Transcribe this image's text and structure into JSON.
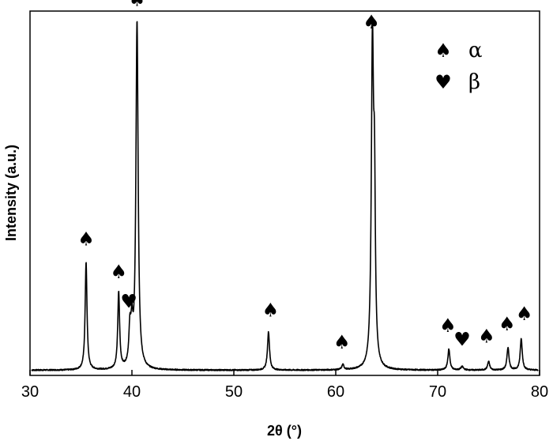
{
  "chart_data": {
    "type": "line",
    "title": "",
    "xlabel": "2θ (°)",
    "ylabel": "Intensity (a.u.)",
    "xlim": [
      30,
      80
    ],
    "ylim": [
      0,
      105
    ],
    "xticks": [
      30,
      40,
      50,
      60,
      70,
      80
    ],
    "y_tick_labels": false,
    "grid": false,
    "baseline": 1.5,
    "series": [
      {
        "line_color": "#000000",
        "peaks": [
          {
            "x": 35.5,
            "y": 31,
            "w": 0.11
          },
          {
            "x": 38.7,
            "y": 22,
            "w": 0.11
          },
          {
            "x": 39.8,
            "y": 10,
            "w": 0.12
          },
          {
            "x": 40.0,
            "y": 10,
            "w": 0.12
          },
          {
            "x": 40.5,
            "y": 100,
            "w": 0.13
          },
          {
            "x": 53.4,
            "y": 11,
            "w": 0.12
          },
          {
            "x": 60.7,
            "y": 1.5,
            "w": 0.12
          },
          {
            "x": 63.6,
            "y": 92,
            "w": 0.13
          },
          {
            "x": 63.8,
            "y": 44,
            "w": 0.1
          },
          {
            "x": 71.1,
            "y": 6,
            "w": 0.12
          },
          {
            "x": 72.4,
            "y": 1,
            "w": 0.15
          },
          {
            "x": 75.0,
            "y": 2.5,
            "w": 0.12
          },
          {
            "x": 76.9,
            "y": 6.5,
            "w": 0.12
          },
          {
            "x": 78.2,
            "y": 9,
            "w": 0.12
          }
        ]
      }
    ],
    "phase_markers": [
      {
        "x": 35.5,
        "y": 37.5,
        "symbol": "♠"
      },
      {
        "x": 38.7,
        "y": 28,
        "symbol": "♠"
      },
      {
        "x": 39.7,
        "y": 19.5,
        "symbol": "♥"
      },
      {
        "x": 40.5,
        "y": 106.5,
        "symbol": "♠"
      },
      {
        "x": 53.6,
        "y": 17,
        "symbol": "♠"
      },
      {
        "x": 60.6,
        "y": 7.8,
        "symbol": "♠"
      },
      {
        "x": 63.5,
        "y": 100,
        "symbol": "♠"
      },
      {
        "x": 71.0,
        "y": 12.5,
        "symbol": "♠"
      },
      {
        "x": 72.4,
        "y": 8.5,
        "symbol": "♥"
      },
      {
        "x": 74.8,
        "y": 9.5,
        "symbol": "♠"
      },
      {
        "x": 76.8,
        "y": 13,
        "symbol": "♠"
      },
      {
        "x": 78.5,
        "y": 16,
        "symbol": "♠"
      }
    ],
    "legend": {
      "position": "top-right",
      "entries": [
        {
          "symbol": "♠",
          "label": "α"
        },
        {
          "symbol": "♥",
          "label": "β"
        }
      ]
    }
  }
}
